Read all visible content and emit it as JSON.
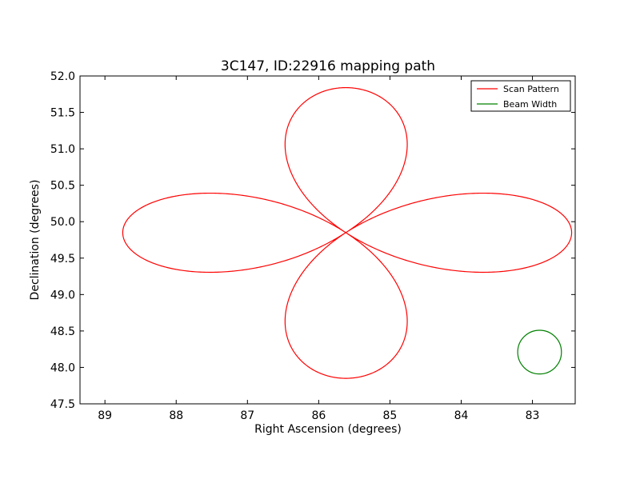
{
  "chart_data": {
    "type": "line",
    "title": "3C147, ID:22916 mapping path",
    "xlabel": "Right Ascension (degrees)",
    "ylabel": "Declination (degrees)",
    "xlim": [
      89.35,
      82.4
    ],
    "ylim": [
      47.5,
      52.0
    ],
    "x_inverted": true,
    "x_ticks": [
      89,
      88,
      87,
      86,
      85,
      84,
      83
    ],
    "x_tick_labels": [
      "89",
      "88",
      "87",
      "86",
      "85",
      "84",
      "83"
    ],
    "y_ticks": [
      47.5,
      48.0,
      48.5,
      49.0,
      49.5,
      50.0,
      50.5,
      51.0,
      51.5,
      52.0
    ],
    "y_tick_labels": [
      "47.5",
      "48.0",
      "48.5",
      "49.0",
      "49.5",
      "50.0",
      "50.5",
      "51.0",
      "51.5",
      "52.0"
    ],
    "grid": false,
    "legend_position": "top-right",
    "series": [
      {
        "name": "Scan Pattern",
        "color": "#ff0000",
        "kind": "four-petal scan path",
        "center": [
          85.62,
          49.85
        ],
        "petals": [
          {
            "direction": "north",
            "extent": [
              85.62,
              51.84
            ]
          },
          {
            "direction": "east",
            "extent": [
              88.75,
              49.85
            ]
          },
          {
            "direction": "south",
            "extent": [
              85.62,
              47.85
            ]
          },
          {
            "direction": "west",
            "extent": [
              82.45,
              49.85
            ]
          }
        ]
      },
      {
        "name": "Beam Width",
        "color": "#008000",
        "kind": "circle",
        "center": [
          82.9,
          48.21
        ],
        "radius_dec": 0.3
      }
    ]
  }
}
